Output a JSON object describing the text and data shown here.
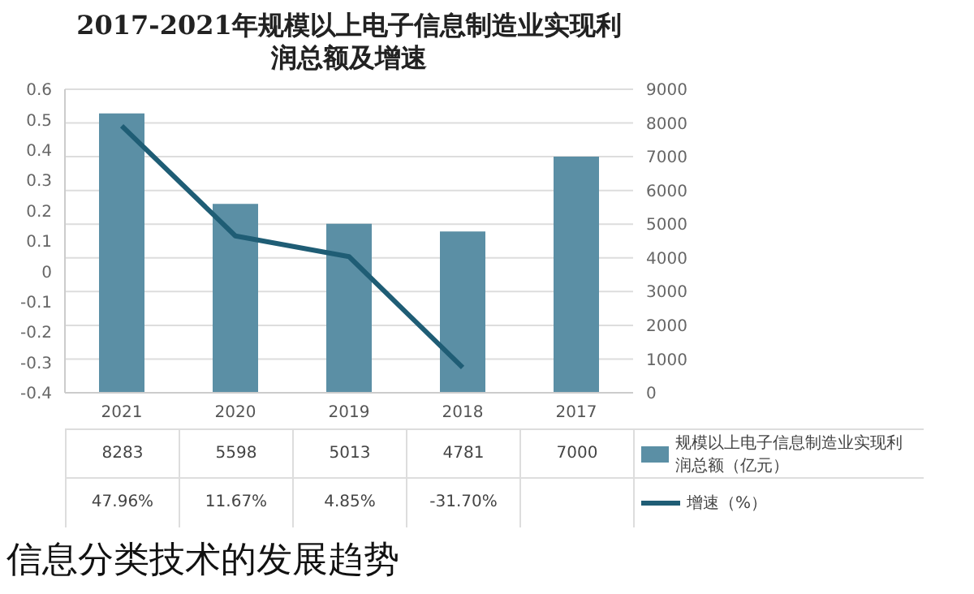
{
  "chart_data": {
    "type": "bar",
    "title": "2017-2021年规模以上电子信息制造业实现利润总额及增速",
    "categories": [
      "2021",
      "2020",
      "2019",
      "2018",
      "2017"
    ],
    "series": [
      {
        "name": "规模以上电子信息制造业实现利润总额（亿元）",
        "axis": "y2",
        "color": "#5b8fa5",
        "values": [
          8283,
          5598,
          5013,
          4781,
          7000
        ],
        "value_labels": [
          "8283",
          "5598",
          "5013",
          "4781",
          "7000"
        ]
      },
      {
        "name": "增速（%）",
        "type": "line",
        "axis": "y",
        "color": "#1f5d75",
        "values": [
          0.4796,
          0.1167,
          0.0485,
          -0.317,
          null
        ],
        "value_labels": [
          "47.96%",
          "11.67%",
          "4.85%",
          "-31.70%",
          null
        ]
      }
    ],
    "ylim": [
      -0.4,
      0.6
    ],
    "yticks": [
      -0.4,
      -0.3,
      -0.2,
      -0.1,
      0,
      0.1,
      0.2,
      0.3,
      0.4,
      0.5,
      0.6
    ],
    "y2lim": [
      0,
      9000
    ],
    "y2ticks": [
      0,
      1000,
      2000,
      3000,
      4000,
      5000,
      6000,
      7000,
      8000,
      9000
    ],
    "grid": "y",
    "legend": "right",
    "marker": "none",
    "line_style": "solid",
    "annotations": [
      "信息分类技术的发展趋势"
    ]
  }
}
